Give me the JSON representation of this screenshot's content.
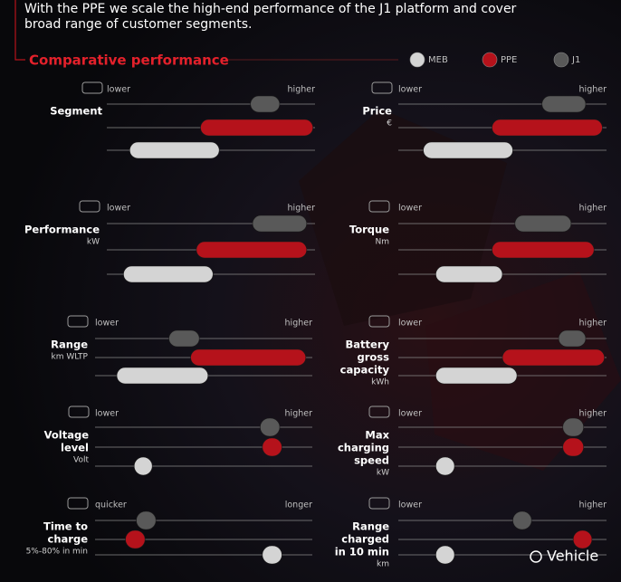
{
  "intro": [
    "With the PPE we scale the high-end performance of the J1 platform and cover",
    "broad range of customer segments."
  ],
  "section_title": "Comparative performance",
  "legend": [
    {
      "name": "MEB",
      "color": "#d4d4d4"
    },
    {
      "name": "PPE",
      "color": "#b5121b"
    },
    {
      "name": "J1",
      "color": "#595959"
    }
  ],
  "scale": [
    0,
    100
  ],
  "panels": [
    {
      "label": [
        "Segment"
      ],
      "low": "lower",
      "high": "higher",
      "bars": [
        [
          69,
          83
        ],
        [
          45,
          99
        ],
        [
          11,
          54
        ]
      ]
    },
    {
      "label": [
        "Price"
      ],
      "unit": "€",
      "low": "lower",
      "high": "higher",
      "bars": [
        [
          69,
          90
        ],
        [
          45,
          98
        ],
        [
          12,
          55
        ]
      ]
    },
    {
      "label": [
        "Performance"
      ],
      "unit": "kW",
      "low": "lower",
      "high": "higher",
      "bars": [
        [
          70,
          96
        ],
        [
          43,
          96
        ],
        [
          8,
          51
        ]
      ]
    },
    {
      "label": [
        "Torque"
      ],
      "unit": "Nm",
      "low": "lower",
      "high": "higher",
      "bars": [
        [
          56,
          83
        ],
        [
          45,
          94
        ],
        [
          18,
          50
        ]
      ]
    },
    {
      "label": [
        "Range"
      ],
      "unit": "km WLTP",
      "low": "lower",
      "high": "higher",
      "bars": [
        [
          34,
          48
        ],
        [
          44,
          97
        ],
        [
          10,
          52
        ]
      ]
    },
    {
      "label": [
        "Battery",
        "gross",
        "capacity"
      ],
      "unit": "kWh",
      "low": "lower",
      "high": "higher",
      "bars": [
        [
          77,
          90
        ],
        [
          50,
          99
        ],
        [
          18,
          57
        ]
      ]
    },
    {
      "label": [
        "Voltage",
        "level"
      ],
      "unit": "Volt",
      "low": "lower",
      "high": "higher",
      "bars": [
        [
          76,
          85
        ],
        [
          77,
          86
        ],
        [
          18,
          26
        ]
      ]
    },
    {
      "label": [
        "Max",
        "charging",
        "speed"
      ],
      "unit": "kW",
      "low": "lower",
      "high": "higher",
      "bars": [
        [
          79,
          89
        ],
        [
          79,
          89
        ],
        [
          18,
          27
        ]
      ]
    },
    {
      "label": [
        "Time to",
        "charge"
      ],
      "unit": "5%-80% in min",
      "low": "quicker",
      "high": "longer",
      "bars": [
        [
          19,
          28
        ],
        [
          14,
          23
        ],
        [
          77,
          86
        ]
      ]
    },
    {
      "label": [
        "Range",
        "charged",
        "in 10 min"
      ],
      "unit": "km",
      "low": "lower",
      "high": "higher",
      "bars": [
        [
          55,
          64
        ],
        [
          84,
          93
        ],
        [
          18,
          27
        ]
      ]
    }
  ],
  "watermark": "Vehicle"
}
